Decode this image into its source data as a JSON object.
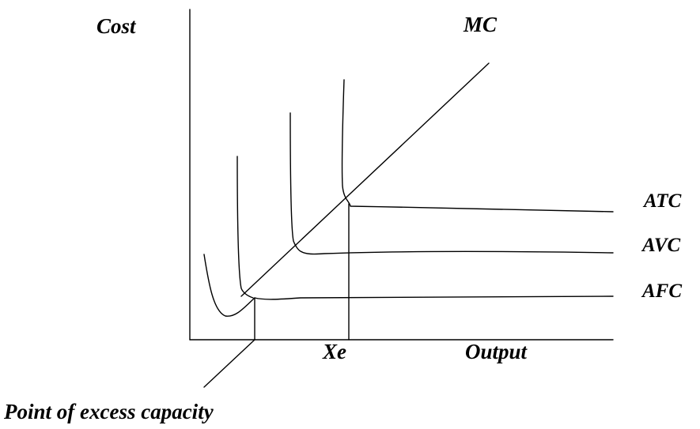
{
  "labels": {
    "y_axis": "Cost",
    "x_axis": "Output",
    "mc": "MC",
    "atc": "ATC",
    "avc": "AVC",
    "afc": "AFC",
    "xe": "Xe",
    "pointer": "Point of excess capacity"
  },
  "colors": {
    "line": "#000000",
    "background": "#ffffff"
  }
}
